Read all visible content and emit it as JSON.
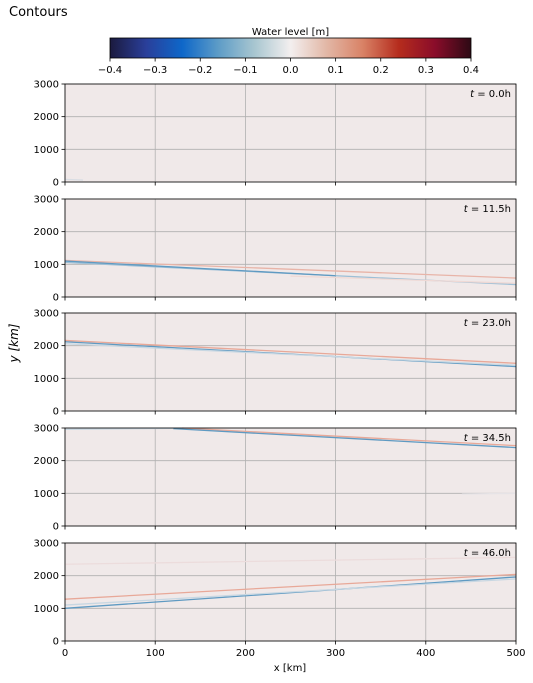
{
  "figure": {
    "suptitle": "Contours",
    "ylabel": "y [km]",
    "xlabel": "x [km]"
  },
  "colorbar": {
    "label": "Water level [m]",
    "vmin": -0.4,
    "vmax": 0.4,
    "ticks": [
      -0.4,
      -0.3,
      -0.2,
      -0.1,
      0.0,
      0.1,
      0.2,
      0.3,
      0.4
    ],
    "tick_labels": [
      "−0.4",
      "−0.3",
      "−0.2",
      "−0.1",
      "0.0",
      "0.1",
      "0.2",
      "0.3",
      "0.4"
    ],
    "colors": [
      "#1b1a3e",
      "#2a3f9a",
      "#0e67c9",
      "#5d9cc7",
      "#a8c6d0",
      "#f3efef",
      "#e2b7a6",
      "#d98266",
      "#b52c1d",
      "#8a0c2a",
      "#2d0a14"
    ]
  },
  "chart_data": [
    {
      "type": "contour",
      "annotation": "$t = 0.0$h",
      "annotation_text": "t = 0.0h",
      "xlim": [
        0,
        500
      ],
      "ylim": [
        0,
        3000
      ],
      "xticks": [
        0,
        100,
        200,
        300,
        400,
        500
      ],
      "yticks": [
        0,
        1000,
        2000,
        3000
      ],
      "ytick_labels": [
        "0",
        "1000",
        "2000",
        "3000"
      ],
      "show_xtick_labels": false,
      "grid": true,
      "background": "#f0e9e9",
      "contours": [
        {
          "color": "#d9dde3",
          "x": [
            0,
            20
          ],
          "y": [
            80,
            60
          ]
        }
      ]
    },
    {
      "type": "contour",
      "annotation_text": "t = 11.5h",
      "xlim": [
        0,
        500
      ],
      "ylim": [
        0,
        3000
      ],
      "xticks": [
        0,
        100,
        200,
        300,
        400,
        500
      ],
      "yticks": [
        0,
        1000,
        2000,
        3000
      ],
      "ytick_labels": [
        "0",
        "1000",
        "2000",
        "3000"
      ],
      "show_xtick_labels": false,
      "grid": true,
      "background": "#f0e9e9",
      "contours": [
        {
          "color": "#e8b4a8",
          "x": [
            0,
            500
          ],
          "y": [
            1120,
            580
          ]
        },
        {
          "color": "#9dbfd6",
          "x": [
            0,
            500
          ],
          "y": [
            1060,
            380
          ]
        },
        {
          "color": "#5f9ac2",
          "x": [
            0,
            300
          ],
          "y": [
            1100,
            650
          ]
        },
        {
          "color": "#efd9d5",
          "x": [
            250,
            500
          ],
          "y": [
            640,
            420
          ]
        }
      ]
    },
    {
      "type": "contour",
      "annotation_text": "t = 23.0h",
      "xlim": [
        0,
        500
      ],
      "ylim": [
        0,
        3000
      ],
      "xticks": [
        0,
        100,
        200,
        300,
        400,
        500
      ],
      "yticks": [
        0,
        1000,
        2000,
        3000
      ],
      "ytick_labels": [
        "0",
        "1000",
        "2000",
        "3000"
      ],
      "show_xtick_labels": false,
      "grid": true,
      "background": "#f0e9e9",
      "contours": [
        {
          "color": "#e8a898",
          "x": [
            0,
            500
          ],
          "y": [
            2160,
            1460
          ]
        },
        {
          "color": "#5f9ac2",
          "x": [
            0,
            500
          ],
          "y": [
            2120,
            1360
          ]
        },
        {
          "color": "#c8d7e2",
          "x": [
            0,
            500
          ],
          "y": [
            2060,
            1400
          ]
        }
      ]
    },
    {
      "type": "contour",
      "annotation_text": "t = 34.5h",
      "xlim": [
        0,
        500
      ],
      "ylim": [
        0,
        3000
      ],
      "xticks": [
        0,
        100,
        200,
        300,
        400,
        500
      ],
      "yticks": [
        0,
        1000,
        2000,
        3000
      ],
      "ytick_labels": [
        "0",
        "1000",
        "2000",
        "3000"
      ],
      "show_xtick_labels": false,
      "grid": true,
      "background": "#f0e9e9",
      "contours": [
        {
          "color": "#e8a898",
          "x": [
            130,
            500
          ],
          "y": [
            3000,
            2460
          ]
        },
        {
          "color": "#5f9ac2",
          "x": [
            120,
            500
          ],
          "y": [
            2980,
            2400
          ]
        },
        {
          "color": "#c8d7e2",
          "x": [
            0,
            120
          ],
          "y": [
            2960,
            2990
          ]
        },
        {
          "color": "#e6e3e6",
          "x": [
            440,
            500
          ],
          "y": [
            980,
            1000
          ]
        }
      ]
    },
    {
      "type": "contour",
      "annotation_text": "t = 46.0h",
      "xlim": [
        0,
        500
      ],
      "ylim": [
        0,
        3000
      ],
      "xticks": [
        0,
        100,
        200,
        300,
        400,
        500
      ],
      "yticks": [
        0,
        1000,
        2000,
        3000
      ],
      "ytick_labels": [
        "0",
        "1000",
        "2000",
        "3000"
      ],
      "xtick_labels": [
        "0",
        "100",
        "200",
        "300",
        "400",
        "500"
      ],
      "show_xtick_labels": true,
      "grid": true,
      "background": "#f0e9e9",
      "contours": [
        {
          "color": "#e8a898",
          "x": [
            0,
            500
          ],
          "y": [
            1280,
            2040
          ]
        },
        {
          "color": "#5f9ac2",
          "x": [
            0,
            500
          ],
          "y": [
            1000,
            1960
          ]
        },
        {
          "color": "#c8d7e2",
          "x": [
            0,
            500
          ],
          "y": [
            1100,
            1900
          ]
        },
        {
          "color": "#ecdcdc",
          "x": [
            0,
            500
          ],
          "y": [
            2350,
            2560
          ]
        }
      ]
    }
  ]
}
